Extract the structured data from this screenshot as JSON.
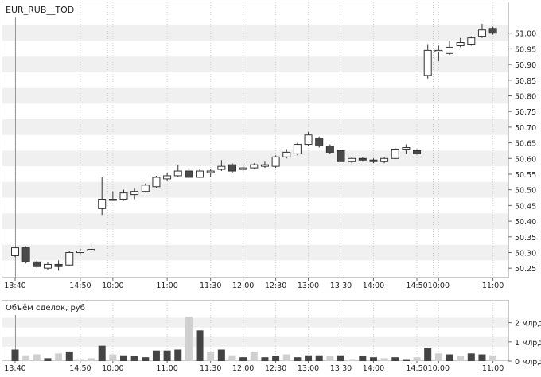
{
  "ticker": "EUR_RUB__TOD",
  "volume_title": "Объём сделок, руб",
  "colors": {
    "up_fill": "#ffffff",
    "down_fill": "#4a4a4a",
    "band": "#f0f0f0",
    "frame": "#c9c9c9",
    "vol_light": "#d0d0d0",
    "vol_dark": "#444444",
    "cursor": "#999999"
  },
  "chart_data": [
    {
      "type": "candlestick",
      "title": "EUR_RUB__TOD",
      "ylim": [
        50.22,
        51.05
      ],
      "y_ticks": [
        51.0,
        50.95,
        50.9,
        50.85,
        50.8,
        50.75,
        50.7,
        50.65,
        50.6,
        50.55,
        50.5,
        50.45,
        50.4,
        50.35,
        50.3,
        50.25
      ],
      "y_tick_labels": [
        "51.00",
        "50.95",
        "50.90",
        "50.85",
        "50.80",
        "50.75",
        "50.70",
        "50.65",
        "50.60",
        "50.55",
        "50.50",
        "50.45",
        "50.40",
        "50.35",
        "50.30",
        "50.25"
      ],
      "x_labels": [
        {
          "index": 0,
          "label": "13:40"
        },
        {
          "index": 6,
          "label": "14:50"
        },
        {
          "index": 9,
          "label": "10:00"
        },
        {
          "index": 14,
          "label": "11:00"
        },
        {
          "index": 18,
          "label": "11:30"
        },
        {
          "index": 21,
          "label": "12:00"
        },
        {
          "index": 24,
          "label": "12:30"
        },
        {
          "index": 27,
          "label": "13:00"
        },
        {
          "index": 30,
          "label": "13:30"
        },
        {
          "index": 33,
          "label": "14:00"
        },
        {
          "index": 37,
          "label": "14:50"
        },
        {
          "index": 39,
          "label": "10:00"
        },
        {
          "index": 44,
          "label": "11:00"
        }
      ],
      "session_breaks": [
        8.5,
        38.5
      ],
      "candles": [
        {
          "o": 50.29,
          "c": 50.315,
          "h": 50.315,
          "l": 50.285
        },
        {
          "o": 50.315,
          "c": 50.27,
          "h": 50.32,
          "l": 50.265
        },
        {
          "o": 50.27,
          "c": 50.255,
          "h": 50.275,
          "l": 50.25
        },
        {
          "o": 50.25,
          "c": 50.262,
          "h": 50.27,
          "l": 50.245
        },
        {
          "o": 50.262,
          "c": 50.255,
          "h": 50.275,
          "l": 50.242
        },
        {
          "o": 50.26,
          "c": 50.3,
          "h": 50.305,
          "l": 50.258
        },
        {
          "o": 50.3,
          "c": 50.305,
          "h": 50.312,
          "l": 50.295
        },
        {
          "o": 50.305,
          "c": 50.31,
          "h": 50.33,
          "l": 50.3
        },
        {
          "o": 50.44,
          "c": 50.47,
          "h": 50.54,
          "l": 50.42
        },
        {
          "o": 50.47,
          "c": 50.47,
          "h": 50.495,
          "l": 50.468
        },
        {
          "o": 50.47,
          "c": 50.49,
          "h": 50.5,
          "l": 50.465
        },
        {
          "o": 50.485,
          "c": 50.495,
          "h": 50.505,
          "l": 50.47
        },
        {
          "o": 50.495,
          "c": 50.515,
          "h": 50.52,
          "l": 50.492
        },
        {
          "o": 50.51,
          "c": 50.54,
          "h": 50.545,
          "l": 50.505
        },
        {
          "o": 50.535,
          "c": 50.545,
          "h": 50.555,
          "l": 50.53
        },
        {
          "o": 50.545,
          "c": 50.56,
          "h": 50.58,
          "l": 50.54
        },
        {
          "o": 50.56,
          "c": 50.54,
          "h": 50.565,
          "l": 50.538
        },
        {
          "o": 50.54,
          "c": 50.56,
          "h": 50.565,
          "l": 50.538
        },
        {
          "o": 50.555,
          "c": 50.56,
          "h": 50.565,
          "l": 50.54
        },
        {
          "o": 50.565,
          "c": 50.575,
          "h": 50.595,
          "l": 50.56
        },
        {
          "o": 50.58,
          "c": 50.56,
          "h": 50.585,
          "l": 50.555
        },
        {
          "o": 50.565,
          "c": 50.57,
          "h": 50.58,
          "l": 50.56
        },
        {
          "o": 50.57,
          "c": 50.58,
          "h": 50.585,
          "l": 50.565
        },
        {
          "o": 50.575,
          "c": 50.58,
          "h": 50.59,
          "l": 50.57
        },
        {
          "o": 50.575,
          "c": 50.605,
          "h": 50.61,
          "l": 50.57
        },
        {
          "o": 50.605,
          "c": 50.62,
          "h": 50.63,
          "l": 50.6
        },
        {
          "o": 50.615,
          "c": 50.645,
          "h": 50.65,
          "l": 50.61
        },
        {
          "o": 50.645,
          "c": 50.675,
          "h": 50.685,
          "l": 50.64
        },
        {
          "o": 50.665,
          "c": 50.64,
          "h": 50.67,
          "l": 50.635
        },
        {
          "o": 50.64,
          "c": 50.62,
          "h": 50.645,
          "l": 50.615
        },
        {
          "o": 50.625,
          "c": 50.59,
          "h": 50.63,
          "l": 50.585
        },
        {
          "o": 50.59,
          "c": 50.6,
          "h": 50.605,
          "l": 50.585
        },
        {
          "o": 50.6,
          "c": 50.595,
          "h": 50.605,
          "l": 50.59
        },
        {
          "o": 50.595,
          "c": 50.59,
          "h": 50.6,
          "l": 50.585
        },
        {
          "o": 50.59,
          "c": 50.6,
          "h": 50.605,
          "l": 50.585
        },
        {
          "o": 50.6,
          "c": 50.63,
          "h": 50.635,
          "l": 50.598
        },
        {
          "o": 50.63,
          "c": 50.635,
          "h": 50.645,
          "l": 50.615
        },
        {
          "o": 50.625,
          "c": 50.615,
          "h": 50.63,
          "l": 50.612
        },
        {
          "o": 50.865,
          "c": 50.945,
          "h": 50.965,
          "l": 50.855
        },
        {
          "o": 50.94,
          "c": 50.945,
          "h": 50.96,
          "l": 50.91
        },
        {
          "o": 50.935,
          "c": 50.955,
          "h": 50.975,
          "l": 50.93
        },
        {
          "o": 50.96,
          "c": 50.97,
          "h": 50.985,
          "l": 50.955
        },
        {
          "o": 50.965,
          "c": 50.985,
          "h": 50.99,
          "l": 50.96
        },
        {
          "o": 50.99,
          "c": 51.01,
          "h": 51.03,
          "l": 50.985
        },
        {
          "o": 51.015,
          "c": 51.0,
          "h": 51.02,
          "l": 50.995
        }
      ]
    },
    {
      "type": "bar",
      "title": "Объём сделок, руб",
      "ylim": [
        0,
        2.4
      ],
      "y_ticks": [
        0,
        1,
        2
      ],
      "y_tick_labels": [
        "0 млрд",
        "1 млрд",
        "2 млрд"
      ],
      "x_labels": [
        {
          "index": 0,
          "label": "13:40"
        },
        {
          "index": 6,
          "label": "14:50"
        },
        {
          "index": 9,
          "label": "10:00"
        },
        {
          "index": 14,
          "label": "11:00"
        },
        {
          "index": 18,
          "label": "11:30"
        },
        {
          "index": 21,
          "label": "12:00"
        },
        {
          "index": 24,
          "label": "12:30"
        },
        {
          "index": 27,
          "label": "13:00"
        },
        {
          "index": 30,
          "label": "13:30"
        },
        {
          "index": 33,
          "label": "14:00"
        },
        {
          "index": 37,
          "label": "14:50"
        },
        {
          "index": 39,
          "label": "10:00"
        },
        {
          "index": 44,
          "label": "11:00"
        }
      ],
      "values": [
        0.6,
        0.3,
        0.35,
        0.15,
        0.4,
        0.5,
        0.1,
        0.15,
        0.8,
        0.35,
        0.3,
        0.25,
        0.2,
        0.55,
        0.55,
        0.6,
        2.3,
        1.6,
        0.5,
        0.6,
        0.3,
        0.2,
        0.5,
        0.2,
        0.25,
        0.35,
        0.2,
        0.3,
        0.3,
        0.25,
        0.3,
        0.1,
        0.25,
        0.2,
        0.15,
        0.2,
        0.1,
        0.2,
        0.7,
        0.4,
        0.35,
        0.25,
        0.4,
        0.35,
        0.3
      ],
      "shade": [
        "dark",
        "light",
        "light",
        "dark",
        "light",
        "dark",
        "light",
        "light",
        "dark",
        "light",
        "dark",
        "dark",
        "dark",
        "dark",
        "dark",
        "dark",
        "light",
        "dark",
        "light",
        "dark",
        "light",
        "dark",
        "light",
        "dark",
        "dark",
        "light",
        "dark",
        "dark",
        "dark",
        "light",
        "dark",
        "light",
        "dark",
        "dark",
        "light",
        "dark",
        "dark",
        "light",
        "dark",
        "light",
        "dark",
        "light",
        "dark",
        "dark",
        "light"
      ]
    }
  ]
}
